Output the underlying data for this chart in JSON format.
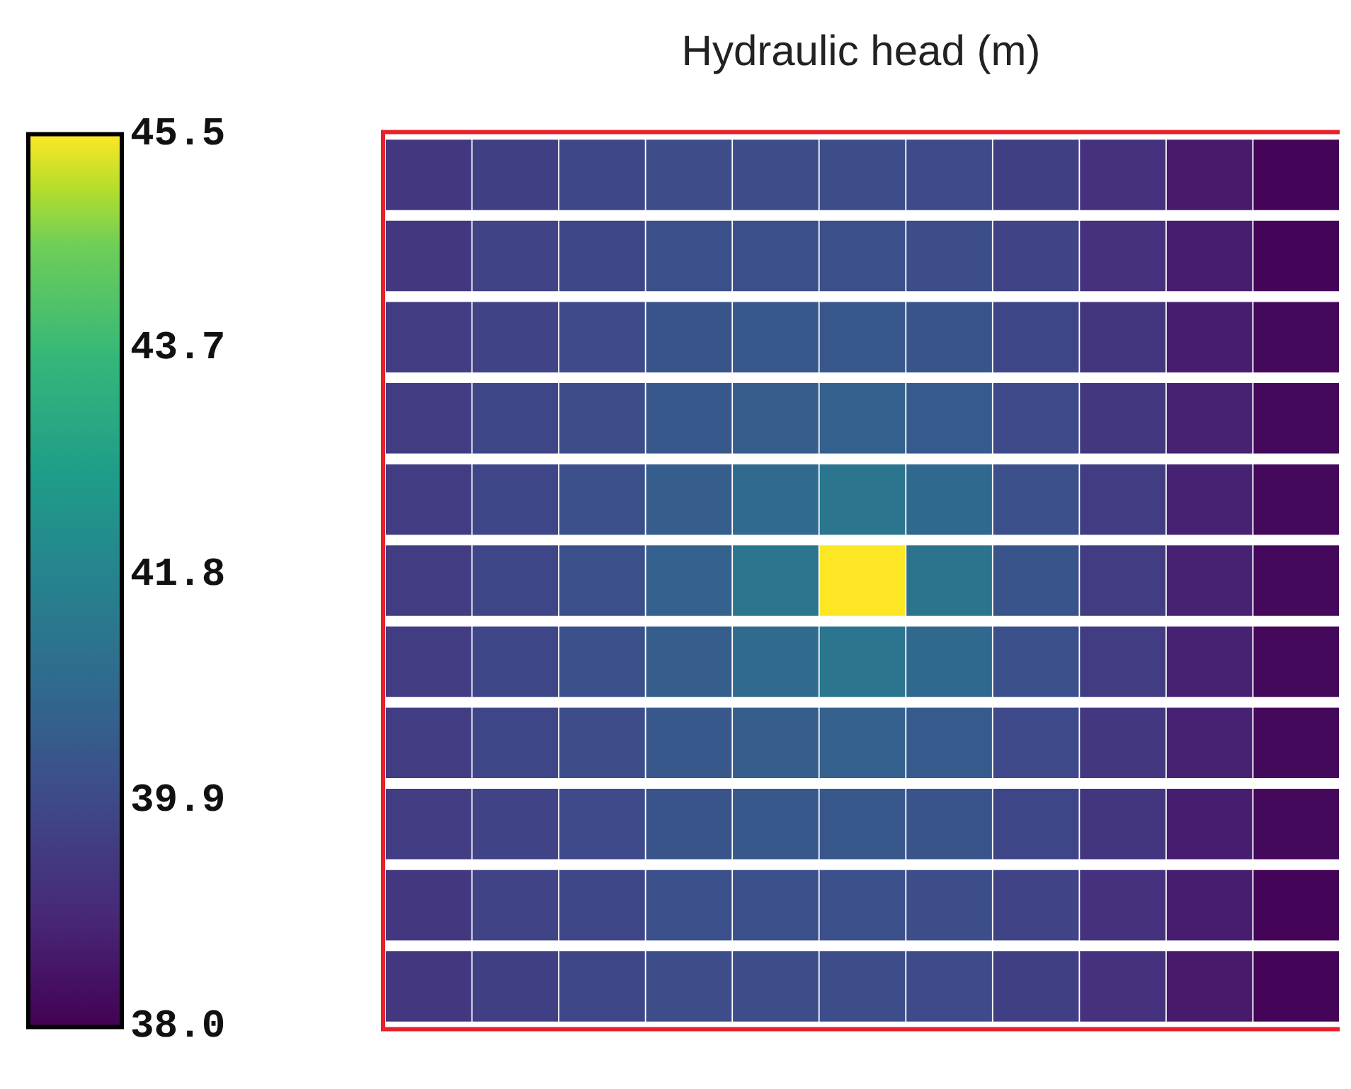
{
  "chart_data": {
    "type": "heatmap",
    "title": "Hydraulic head (m)",
    "categories": [
      null,
      null,
      null,
      null,
      null,
      null,
      null,
      null,
      null,
      null,
      null
    ],
    "y_categories": [
      null,
      null,
      null,
      null,
      null,
      null,
      null,
      null,
      null,
      null,
      null
    ],
    "cells": [
      [
        39.4,
        39.6,
        39.8,
        40.0,
        40.0,
        40.0,
        39.9,
        39.6,
        39.2,
        38.6,
        38.1
      ],
      [
        39.4,
        39.7,
        39.8,
        40.1,
        40.1,
        40.1,
        40.0,
        39.7,
        39.2,
        38.7,
        38.1
      ],
      [
        39.5,
        39.7,
        39.9,
        40.2,
        40.3,
        40.3,
        40.2,
        39.8,
        39.3,
        38.7,
        38.2
      ],
      [
        39.5,
        39.8,
        40.0,
        40.3,
        40.5,
        40.6,
        40.4,
        39.9,
        39.4,
        38.8,
        38.2
      ],
      [
        39.5,
        39.8,
        40.1,
        40.5,
        40.9,
        41.3,
        40.8,
        40.1,
        39.5,
        38.8,
        38.2
      ],
      [
        39.5,
        39.8,
        40.1,
        40.6,
        41.3,
        45.5,
        41.2,
        40.2,
        39.5,
        38.8,
        38.2
      ],
      [
        39.5,
        39.8,
        40.1,
        40.5,
        40.9,
        41.3,
        40.8,
        40.1,
        39.5,
        38.8,
        38.2
      ],
      [
        39.5,
        39.8,
        40.0,
        40.3,
        40.5,
        40.6,
        40.4,
        39.9,
        39.4,
        38.8,
        38.2
      ],
      [
        39.5,
        39.7,
        39.9,
        40.2,
        40.3,
        40.3,
        40.2,
        39.8,
        39.3,
        38.7,
        38.2
      ],
      [
        39.4,
        39.7,
        39.8,
        40.1,
        40.1,
        40.1,
        40.0,
        39.7,
        39.2,
        38.7,
        38.1
      ],
      [
        39.4,
        39.6,
        39.8,
        40.0,
        40.0,
        40.0,
        39.9,
        39.6,
        39.2,
        38.6,
        38.1
      ]
    ],
    "clim": [
      38.0,
      45.5
    ],
    "cticks": [
      {
        "value": 38.0,
        "label": "38.0"
      },
      39.9,
      41.8,
      43.7,
      45.5
    ]
  }
}
